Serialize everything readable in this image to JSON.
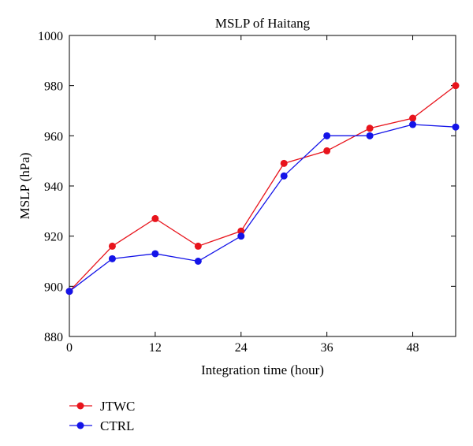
{
  "chart_data": {
    "type": "line",
    "title": "MSLP of Haitang",
    "xlabel": "Integration time (hour)",
    "ylabel": "MSLP (hPa)",
    "xlim": [
      0,
      54
    ],
    "ylim": [
      880,
      1000
    ],
    "xticks": [
      0,
      12,
      24,
      36,
      48
    ],
    "yticks": [
      880,
      900,
      920,
      940,
      960,
      980,
      1000
    ],
    "grid": false,
    "legend_position": "below-left",
    "series": [
      {
        "name": "JTWC",
        "color": "#e8141c",
        "x": [
          0,
          6,
          12,
          18,
          24,
          30,
          36,
          42,
          48,
          54
        ],
        "y": [
          898,
          916,
          927,
          916,
          922,
          949,
          954,
          963,
          967,
          980
        ]
      },
      {
        "name": "CTRL",
        "color": "#1414e8",
        "x": [
          0,
          6,
          12,
          18,
          24,
          30,
          36,
          42,
          48,
          54
        ],
        "y": [
          898,
          911,
          913,
          910,
          920,
          944,
          960,
          960,
          964.5,
          963.5
        ]
      }
    ]
  }
}
